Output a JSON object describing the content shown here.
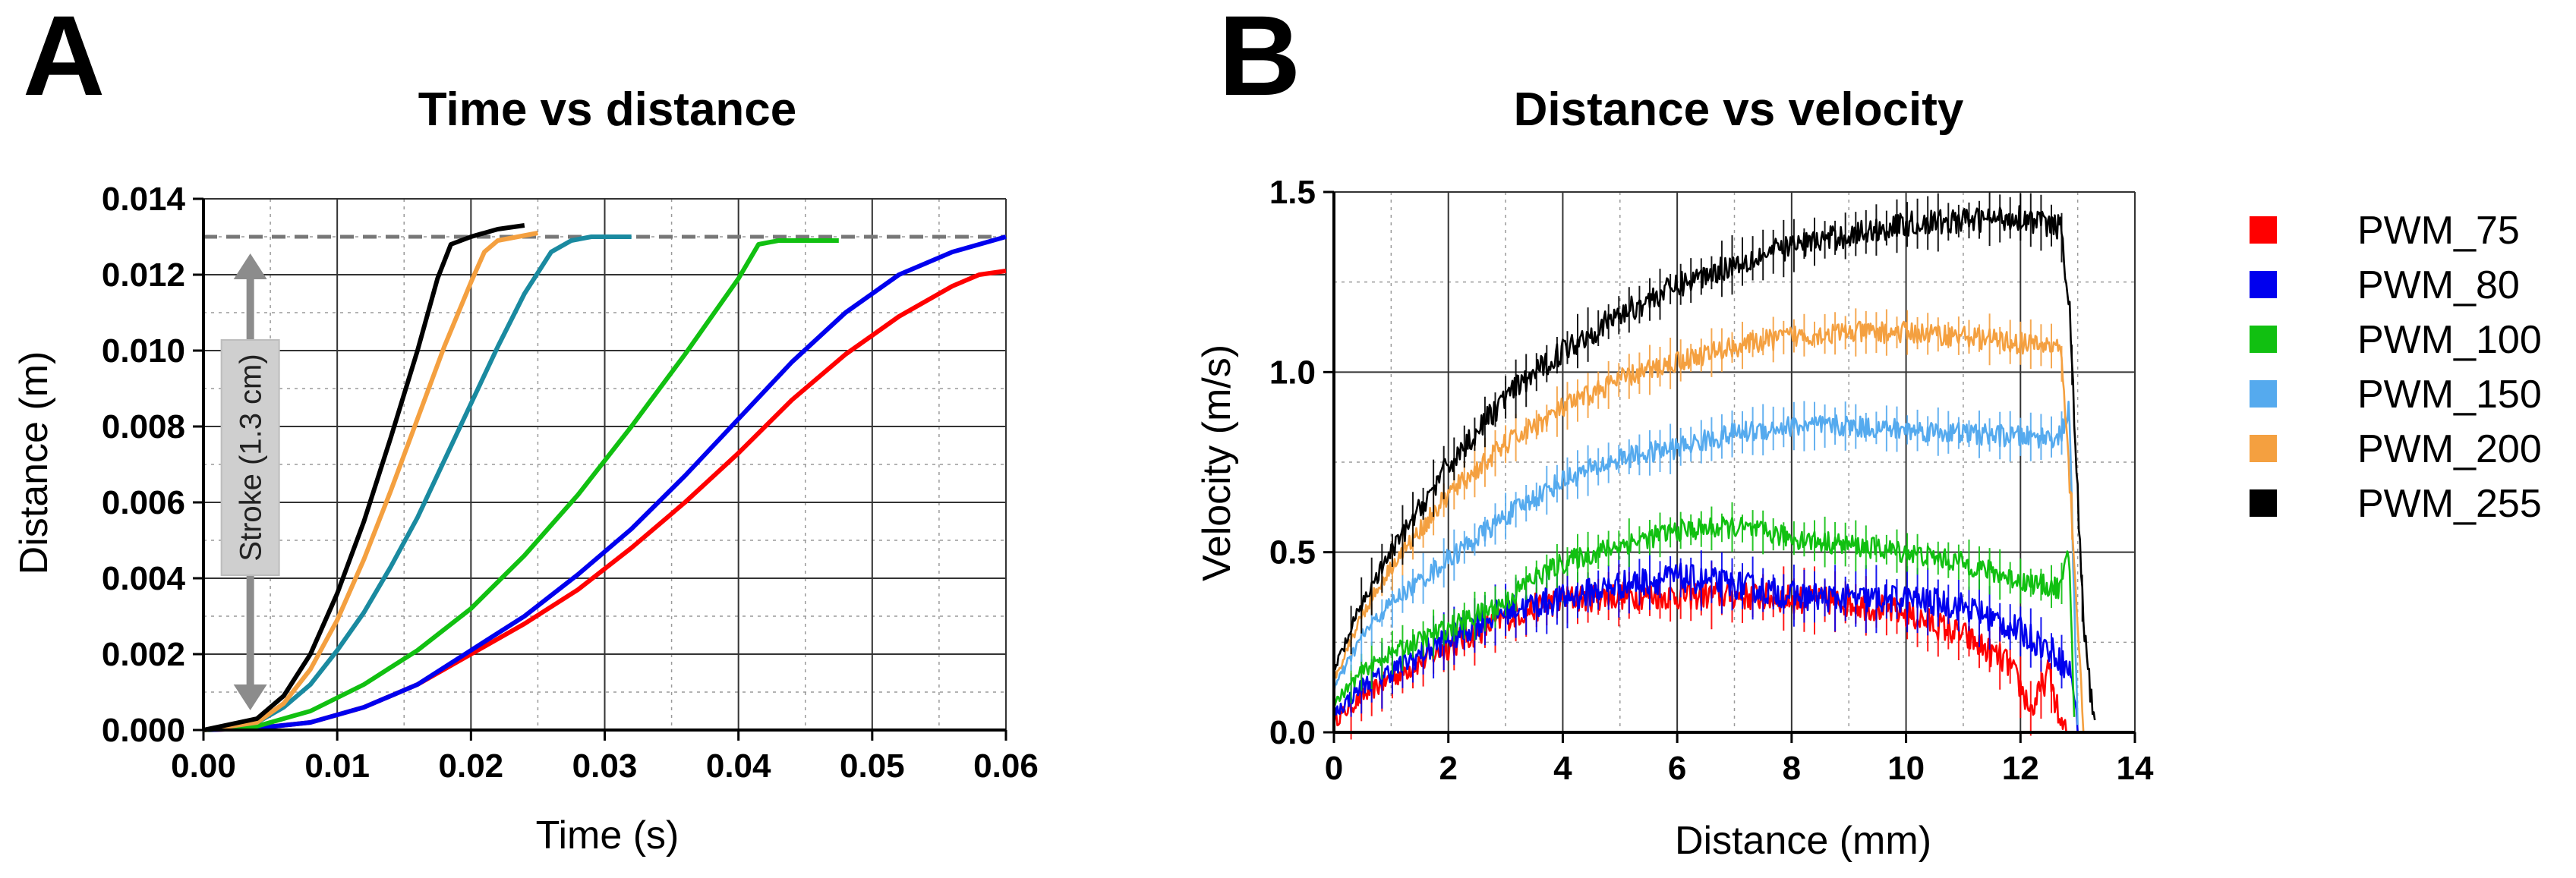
{
  "panels": {
    "a": {
      "letter": "A"
    },
    "b": {
      "letter": "B"
    }
  },
  "chart_data": [
    {
      "type": "line",
      "title": "Time vs distance",
      "xlabel": "Time (s)",
      "ylabel": "Distance (m)",
      "xlim": [
        0,
        0.06
      ],
      "ylim": [
        0,
        0.014
      ],
      "x_ticks": [
        "0.00",
        "0.01",
        "0.02",
        "0.03",
        "0.04",
        "0.05",
        "0.06"
      ],
      "y_ticks": [
        "0.000",
        "0.002",
        "0.004",
        "0.006",
        "0.008",
        "0.010",
        "0.012",
        "0.014"
      ],
      "grid": true,
      "reference_line": {
        "y": 0.013,
        "style": "dashed",
        "color": "#777777"
      },
      "annotation": {
        "text": "Stroke (1.3 cm)",
        "x": 0.0035,
        "y_from": 0.0,
        "y_to": 0.013
      },
      "series": [
        {
          "color": "#ff0000",
          "points": [
            [
              0,
              0
            ],
            [
              0.004,
              5e-05
            ],
            [
              0.008,
              0.0002
            ],
            [
              0.012,
              0.0006
            ],
            [
              0.016,
              0.0012
            ],
            [
              0.02,
              0.002
            ],
            [
              0.024,
              0.0028
            ],
            [
              0.028,
              0.0037
            ],
            [
              0.032,
              0.0048
            ],
            [
              0.036,
              0.006
            ],
            [
              0.04,
              0.0073
            ],
            [
              0.044,
              0.0087
            ],
            [
              0.048,
              0.0099
            ],
            [
              0.052,
              0.0109
            ],
            [
              0.056,
              0.0117
            ],
            [
              0.058,
              0.012
            ],
            [
              0.06,
              0.0121
            ]
          ]
        },
        {
          "color": "#0000ee",
          "points": [
            [
              0,
              0
            ],
            [
              0.004,
              5e-05
            ],
            [
              0.008,
              0.0002
            ],
            [
              0.012,
              0.0006
            ],
            [
              0.016,
              0.0012
            ],
            [
              0.02,
              0.0021
            ],
            [
              0.024,
              0.003
            ],
            [
              0.028,
              0.0041
            ],
            [
              0.032,
              0.0053
            ],
            [
              0.036,
              0.0067
            ],
            [
              0.04,
              0.0082
            ],
            [
              0.044,
              0.0097
            ],
            [
              0.048,
              0.011
            ],
            [
              0.052,
              0.012
            ],
            [
              0.056,
              0.0126
            ],
            [
              0.06,
              0.013
            ]
          ]
        },
        {
          "color": "#11c011",
          "points": [
            [
              0,
              0
            ],
            [
              0.004,
              0.0001
            ],
            [
              0.008,
              0.0005
            ],
            [
              0.012,
              0.0012
            ],
            [
              0.016,
              0.0021
            ],
            [
              0.02,
              0.0032
            ],
            [
              0.024,
              0.0046
            ],
            [
              0.028,
              0.0062
            ],
            [
              0.032,
              0.008
            ],
            [
              0.036,
              0.0099
            ],
            [
              0.04,
              0.0119
            ],
            [
              0.0415,
              0.0128
            ],
            [
              0.043,
              0.0129
            ],
            [
              0.0475,
              0.0129
            ]
          ]
        },
        {
          "color": "#1a8aa0",
          "points": [
            [
              0,
              0
            ],
            [
              0.004,
              0.0002
            ],
            [
              0.006,
              0.0006
            ],
            [
              0.008,
              0.0012
            ],
            [
              0.01,
              0.0021
            ],
            [
              0.012,
              0.0031
            ],
            [
              0.014,
              0.0043
            ],
            [
              0.016,
              0.0056
            ],
            [
              0.018,
              0.0071
            ],
            [
              0.02,
              0.0086
            ],
            [
              0.022,
              0.0101
            ],
            [
              0.024,
              0.0115
            ],
            [
              0.026,
              0.0126
            ],
            [
              0.0275,
              0.0129
            ],
            [
              0.029,
              0.013
            ],
            [
              0.032,
              0.013
            ]
          ]
        },
        {
          "color": "#f4a040",
          "points": [
            [
              0,
              0
            ],
            [
              0.004,
              0.0002
            ],
            [
              0.006,
              0.0007
            ],
            [
              0.008,
              0.0016
            ],
            [
              0.01,
              0.0029
            ],
            [
              0.012,
              0.0045
            ],
            [
              0.014,
              0.0063
            ],
            [
              0.016,
              0.0082
            ],
            [
              0.018,
              0.0101
            ],
            [
              0.02,
              0.0118
            ],
            [
              0.021,
              0.0126
            ],
            [
              0.022,
              0.0129
            ],
            [
              0.025,
              0.0131
            ]
          ]
        },
        {
          "color": "#000000",
          "points": [
            [
              0,
              0
            ],
            [
              0.004,
              0.0003
            ],
            [
              0.006,
              0.0009
            ],
            [
              0.008,
              0.002
            ],
            [
              0.01,
              0.0036
            ],
            [
              0.012,
              0.0055
            ],
            [
              0.014,
              0.0077
            ],
            [
              0.016,
              0.01
            ],
            [
              0.0175,
              0.0119
            ],
            [
              0.0185,
              0.0128
            ],
            [
              0.02,
              0.013
            ],
            [
              0.022,
              0.0132
            ],
            [
              0.024,
              0.0133
            ]
          ]
        }
      ]
    },
    {
      "type": "line",
      "title": "Distance vs velocity",
      "xlabel": "Distance (mm)",
      "ylabel": "Velocity (m/s)",
      "xlim": [
        0,
        14
      ],
      "ylim": [
        0,
        1.5
      ],
      "x_ticks": [
        "0",
        "2",
        "4",
        "6",
        "8",
        "10",
        "12",
        "14"
      ],
      "y_ticks": [
        "0.0",
        "0.5",
        "1.0",
        "1.5"
      ],
      "grid": true,
      "legend": {
        "placement": "right"
      },
      "series": [
        {
          "name": "PWM_75",
          "color": "#ff0000",
          "noise": 0.04,
          "points": [
            [
              0,
              0.03
            ],
            [
              0.5,
              0.1
            ],
            [
              1,
              0.15
            ],
            [
              2,
              0.24
            ],
            [
              3,
              0.32
            ],
            [
              4,
              0.37
            ],
            [
              5,
              0.38
            ],
            [
              6,
              0.38
            ],
            [
              7,
              0.38
            ],
            [
              8,
              0.37
            ],
            [
              9,
              0.36
            ],
            [
              10,
              0.33
            ],
            [
              11,
              0.27
            ],
            [
              11.8,
              0.19
            ],
            [
              12.2,
              0.06
            ],
            [
              12.5,
              0.17
            ],
            [
              12.7,
              0.02
            ],
            [
              12.8,
              0.0
            ]
          ]
        },
        {
          "name": "PWM_80",
          "color": "#0000ee",
          "noise": 0.04,
          "points": [
            [
              0,
              0.05
            ],
            [
              0.5,
              0.13
            ],
            [
              1,
              0.17
            ],
            [
              2,
              0.26
            ],
            [
              3,
              0.34
            ],
            [
              4,
              0.37
            ],
            [
              5,
              0.41
            ],
            [
              6,
              0.43
            ],
            [
              7,
              0.41
            ],
            [
              8,
              0.38
            ],
            [
              9,
              0.37
            ],
            [
              10,
              0.37
            ],
            [
              11,
              0.35
            ],
            [
              12,
              0.28
            ],
            [
              12.6,
              0.22
            ],
            [
              12.9,
              0.16
            ],
            [
              13,
              0.0
            ]
          ]
        },
        {
          "name": "PWM_100",
          "color": "#11c011",
          "noise": 0.03,
          "points": [
            [
              0,
              0.08
            ],
            [
              0.5,
              0.17
            ],
            [
              1,
              0.22
            ],
            [
              2,
              0.29
            ],
            [
              3,
              0.36
            ],
            [
              3.4,
              0.42
            ],
            [
              4,
              0.47
            ],
            [
              5,
              0.52
            ],
            [
              6,
              0.56
            ],
            [
              7,
              0.57
            ],
            [
              8,
              0.54
            ],
            [
              9,
              0.52
            ],
            [
              10,
              0.5
            ],
            [
              11,
              0.47
            ],
            [
              12,
              0.42
            ],
            [
              12.7,
              0.4
            ],
            [
              12.85,
              0.5
            ],
            [
              12.95,
              0.0
            ]
          ]
        },
        {
          "name": "PWM_150",
          "color": "#55aaee",
          "noise": 0.03,
          "points": [
            [
              0,
              0.12
            ],
            [
              0.5,
              0.27
            ],
            [
              1,
              0.36
            ],
            [
              2,
              0.48
            ],
            [
              3,
              0.6
            ],
            [
              4,
              0.7
            ],
            [
              5,
              0.76
            ],
            [
              6,
              0.79
            ],
            [
              7,
              0.83
            ],
            [
              8,
              0.85
            ],
            [
              9,
              0.85
            ],
            [
              10,
              0.84
            ],
            [
              11,
              0.83
            ],
            [
              12,
              0.82
            ],
            [
              12.7,
              0.82
            ],
            [
              12.85,
              0.9
            ],
            [
              13,
              0.0
            ]
          ]
        },
        {
          "name": "PWM_200",
          "color": "#f4a040",
          "noise": 0.03,
          "points": [
            [
              0,
              0.15
            ],
            [
              0.5,
              0.33
            ],
            [
              1,
              0.46
            ],
            [
              2,
              0.66
            ],
            [
              3,
              0.8
            ],
            [
              4,
              0.9
            ],
            [
              5,
              0.98
            ],
            [
              6,
              1.03
            ],
            [
              7,
              1.07
            ],
            [
              8,
              1.1
            ],
            [
              9,
              1.11
            ],
            [
              10,
              1.11
            ],
            [
              11,
              1.1
            ],
            [
              12,
              1.08
            ],
            [
              12.7,
              1.07
            ],
            [
              12.9,
              0.6
            ],
            [
              13.1,
              0.0
            ]
          ]
        },
        {
          "name": "PWM_255",
          "color": "#000000",
          "noise": 0.035,
          "points": [
            [
              0,
              0.17
            ],
            [
              0.5,
              0.36
            ],
            [
              1,
              0.5
            ],
            [
              2,
              0.74
            ],
            [
              3,
              0.93
            ],
            [
              4,
              1.06
            ],
            [
              5,
              1.16
            ],
            [
              6,
              1.24
            ],
            [
              7,
              1.3
            ],
            [
              8,
              1.35
            ],
            [
              9,
              1.38
            ],
            [
              10,
              1.41
            ],
            [
              11,
              1.42
            ],
            [
              12,
              1.43
            ],
            [
              12.7,
              1.4
            ],
            [
              12.85,
              1.2
            ],
            [
              13.1,
              0.3
            ],
            [
              13.3,
              0.0
            ]
          ]
        }
      ]
    }
  ]
}
